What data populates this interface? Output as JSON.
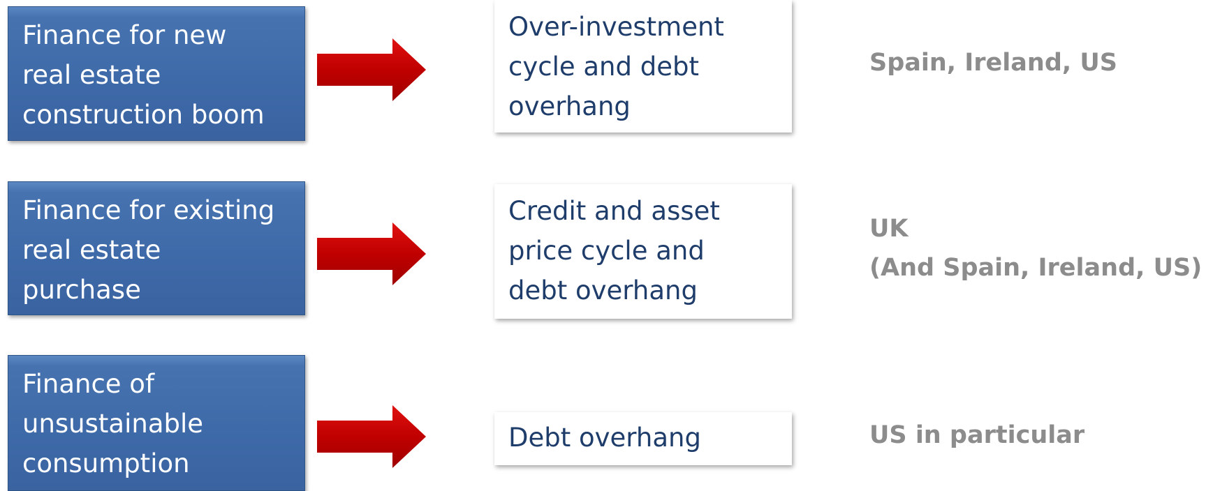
{
  "rows": [
    {
      "source": [
        "Finance for new",
        "real estate",
        "construction boom"
      ],
      "effect": [
        "Over-investment",
        "cycle and debt",
        "overhang"
      ],
      "countries": [
        "Spain, Ireland, US"
      ]
    },
    {
      "source": [
        "Finance for existing",
        "real estate",
        "purchase"
      ],
      "effect": [
        "Credit and asset",
        "price cycle and",
        "debt overhang"
      ],
      "countries": [
        "UK",
        "(And Spain, Ireland, US)"
      ]
    },
    {
      "source": [
        "Finance of",
        "unsustainable",
        "consumption"
      ],
      "effect": [
        "Debt overhang"
      ],
      "countries": [
        "US in particular"
      ]
    }
  ]
}
